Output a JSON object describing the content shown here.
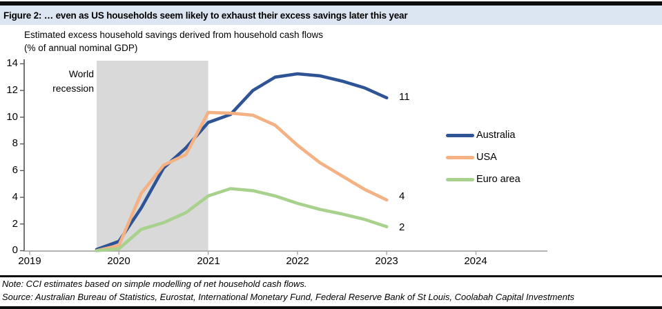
{
  "header": {
    "title": "Figure 2: … even as US households seem likely to exhaust their excess savings later this year"
  },
  "chart": {
    "subtitle_line1": "Estimated excess household savings derived from household cash flows",
    "subtitle_line2": "(% of annual nominal GDP)"
  },
  "chart_data": {
    "type": "line",
    "title": "Estimated excess household savings derived from household cash flows (% of annual nominal GDP)",
    "x": [
      2019.75,
      2020.0,
      2020.25,
      2020.5,
      2020.75,
      2021.0,
      2021.25,
      2021.5,
      2021.75,
      2022.0,
      2022.25,
      2022.5,
      2022.75,
      2023.0
    ],
    "series": [
      {
        "name": "Australia",
        "color": "#2f5496",
        "end_label": "11",
        "values": [
          0.1,
          0.7,
          3.2,
          6.2,
          7.7,
          9.6,
          10.2,
          12.0,
          13.0,
          13.25,
          13.1,
          12.7,
          12.2,
          11.45
        ]
      },
      {
        "name": "USA",
        "color": "#f4b183",
        "end_label": "4",
        "values": [
          0.0,
          0.4,
          4.3,
          6.4,
          7.2,
          10.35,
          10.3,
          10.15,
          9.4,
          7.9,
          6.6,
          5.6,
          4.6,
          3.8
        ]
      },
      {
        "name": "Euro area",
        "color": "#a9d18e",
        "end_label": "2",
        "values": [
          0.0,
          0.15,
          1.6,
          2.1,
          2.85,
          4.1,
          4.65,
          4.5,
          4.1,
          3.55,
          3.1,
          2.75,
          2.35,
          1.8
        ]
      }
    ],
    "xlim": [
      2019,
      2024.8
    ],
    "ylim": [
      0,
      14
    ],
    "grid": false,
    "legend_position": "right",
    "y_ticks": [
      0,
      2,
      4,
      6,
      8,
      10,
      12,
      14
    ],
    "y_tick_labels_top_to_bottom": [
      "14",
      "12",
      "10",
      "8",
      "6",
      "4",
      "2",
      "0"
    ],
    "x_ticks": [
      2019,
      2020,
      2021,
      2022,
      2023,
      2024
    ],
    "x_tick_labels": [
      "2019",
      "2020",
      "2021",
      "2022",
      "2023",
      "2024"
    ],
    "recession_band": {
      "from": 2019.75,
      "to": 2021.0,
      "color": "#d9d9d9",
      "label_line1": "World",
      "label_line2": "recession"
    }
  },
  "footer": {
    "note": "Note: CCI estimates based on simple modelling of net household cash flows.",
    "source": "Source: Australian Bureau of Statistics, Eurostat, International Monetary Fund, Federal Reserve Bank of St Louis, Coolabah Capital Investments"
  }
}
